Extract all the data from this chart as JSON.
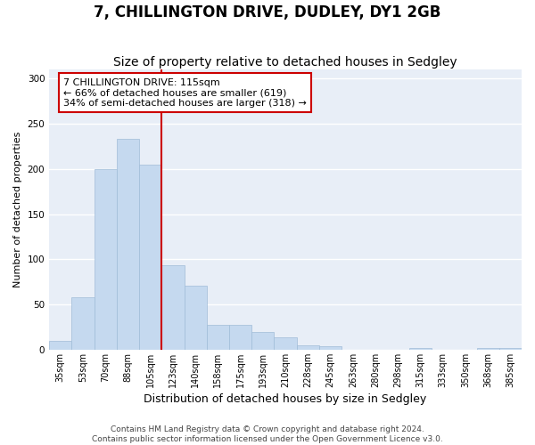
{
  "title": "7, CHILLINGTON DRIVE, DUDLEY, DY1 2GB",
  "subtitle": "Size of property relative to detached houses in Sedgley",
  "xlabel": "Distribution of detached houses by size in Sedgley",
  "ylabel": "Number of detached properties",
  "categories": [
    "35sqm",
    "53sqm",
    "70sqm",
    "88sqm",
    "105sqm",
    "123sqm",
    "140sqm",
    "158sqm",
    "175sqm",
    "193sqm",
    "210sqm",
    "228sqm",
    "245sqm",
    "263sqm",
    "280sqm",
    "298sqm",
    "315sqm",
    "333sqm",
    "350sqm",
    "368sqm",
    "385sqm"
  ],
  "values": [
    10,
    58,
    200,
    233,
    205,
    93,
    71,
    27,
    27,
    20,
    14,
    5,
    4,
    0,
    0,
    0,
    2,
    0,
    0,
    2,
    2
  ],
  "bar_color": "#c5d9ef",
  "bar_edge_color": "#a0bcd8",
  "red_line_color": "#cc0000",
  "red_line_x": 5,
  "annotation_line1": "7 CHILLINGTON DRIVE: 115sqm",
  "annotation_line2": "← 66% of detached houses are smaller (619)",
  "annotation_line3": "34% of semi-detached houses are larger (318) →",
  "annotation_box_facecolor": "#ffffff",
  "annotation_box_edgecolor": "#cc0000",
  "footer_line1": "Contains HM Land Registry data © Crown copyright and database right 2024.",
  "footer_line2": "Contains public sector information licensed under the Open Government Licence v3.0.",
  "ylim": [
    0,
    310
  ],
  "yticks": [
    0,
    50,
    100,
    150,
    200,
    250,
    300
  ],
  "fig_facecolor": "#ffffff",
  "plot_facecolor": "#e8eef7",
  "grid_color": "#ffffff",
  "title_fontsize": 12,
  "subtitle_fontsize": 10,
  "xlabel_fontsize": 9,
  "ylabel_fontsize": 8,
  "tick_fontsize": 7,
  "annotation_fontsize": 8,
  "footer_fontsize": 6.5
}
